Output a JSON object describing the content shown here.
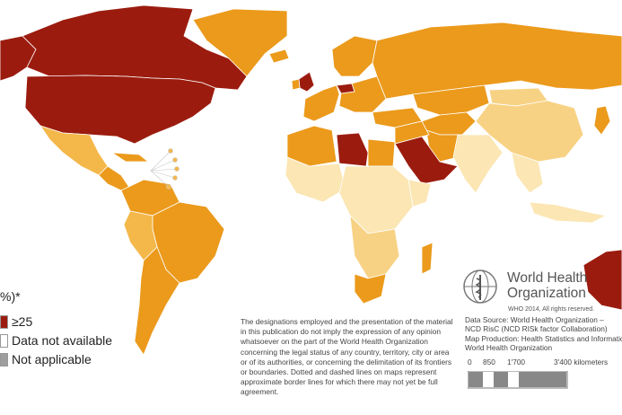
{
  "legend": {
    "title": "%)*",
    "items": [
      {
        "label": "≥25",
        "color": "#9b1c0f"
      },
      {
        "label": "Data not available",
        "color": "#ffffff"
      },
      {
        "label": "Not applicable",
        "color": "#9e9e9e"
      }
    ]
  },
  "colors": {
    "darkred": "#9b1c0f",
    "orange": "#eb9a1c",
    "midorange": "#f4b84a",
    "lightorange": "#f8d284",
    "pale": "#fbe6b4",
    "na": "#9e9e9e"
  },
  "disclaimer": "The designations employed and the presentation of the material in this publication do not imply the expression of any opinion whatsoever on the part of the World Health Organization concerning the legal status of any country, territory, city or area or of its authorities, or concerning the delimitation of its frontiers or boundaries. Dotted and dashed lines on maps represent approximate border lines for which there may not yet be full agreement.",
  "who": {
    "name_line1": "World Health",
    "name_line2": "Organization",
    "copyright": "WHO 2014, All rights reserved.",
    "source_line1": "Data Source: World Health Organization –",
    "source_line2": "NCD RisC (NCD RISk factor Collaboration)",
    "production_line1": "Map Production: Health Statistics and Information",
    "production_line2": "World Health Organization"
  },
  "scale": {
    "labels": [
      "0",
      "850",
      "1'700",
      "3'400 kilometers"
    ]
  }
}
